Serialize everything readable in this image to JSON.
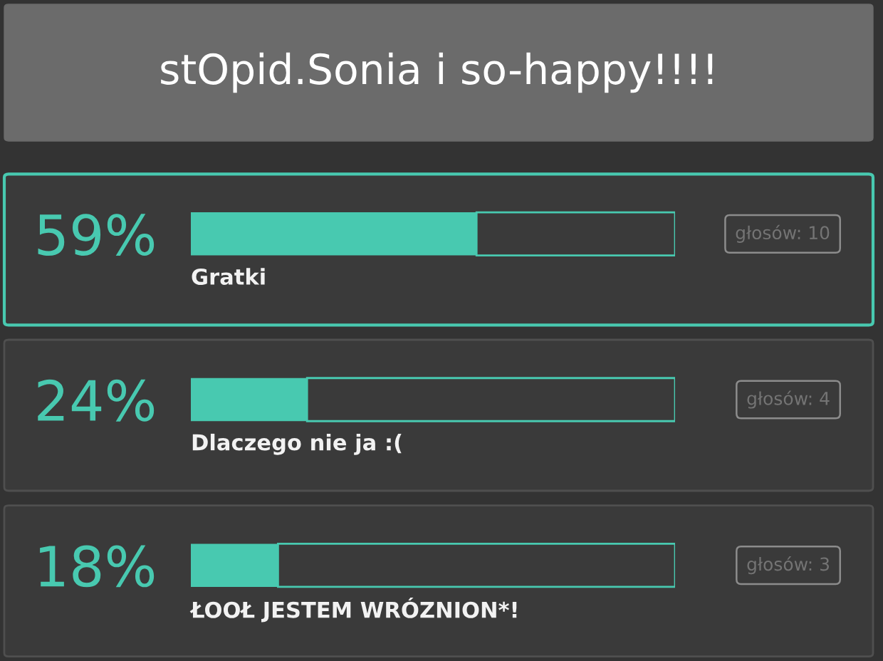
{
  "chart_data": {
    "type": "bar",
    "orientation": "horizontal",
    "stacked": true,
    "title": "stOpid.Sonia i so-happy!!!!",
    "categories": [
      "Gratki",
      "Dlaczego nie ja :(",
      "ŁOOŁ JESTEM WRÓZNION*!"
    ],
    "series": [
      {
        "color": "#48c9b0",
        "values": [
          59,
          24,
          18
        ],
        "value_labels": [
          "59%",
          "24%",
          "18%"
        ]
      },
      {
        "color": "#3a3a3a",
        "values": [
          41,
          76,
          82
        ]
      }
    ],
    "xlim": [
      0,
      100
    ],
    "tick_labels": "y",
    "annotations": [
      "głosów: 10",
      "głosów: 4",
      "głosów: 3"
    ]
  }
}
